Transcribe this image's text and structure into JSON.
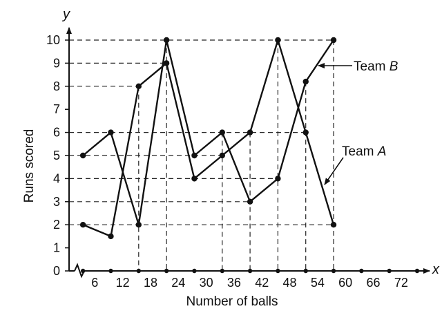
{
  "chart_data": {
    "type": "line",
    "xlabel": "Number of balls",
    "ylabel": "Runs scored",
    "x_axis_var": "x",
    "y_axis_var": "y",
    "x_ticks": [
      "6",
      "12",
      "18",
      "24",
      "30",
      "36",
      "42",
      "48",
      "54",
      "60",
      "66",
      "72"
    ],
    "y_ticks": [
      "0",
      "1",
      "2",
      "3",
      "4",
      "5",
      "6",
      "7",
      "8",
      "9",
      "10"
    ],
    "xlim": [
      0,
      75
    ],
    "ylim": [
      0,
      10.6
    ],
    "axis_break_on_x": true,
    "guide_lines": "dashed",
    "colors": {
      "line": "#111111",
      "guide": "#222222",
      "background": "#ffffff"
    },
    "series": [
      {
        "name": "Team A",
        "x": [
          3,
          9,
          15,
          21,
          27,
          33,
          39,
          45,
          51,
          57
        ],
        "y": [
          2,
          1.5,
          8,
          9,
          4,
          5,
          6,
          10,
          6,
          2
        ]
      },
      {
        "name": "Team B",
        "x": [
          3,
          9,
          15,
          21,
          27,
          33,
          39,
          45,
          51,
          57
        ],
        "y": [
          5,
          6,
          2,
          10,
          5,
          6,
          3,
          4,
          8.2,
          10
        ]
      }
    ],
    "annotations": [
      {
        "text_parts": [
          "Team ",
          "B"
        ],
        "series": "Team B"
      },
      {
        "text_parts": [
          "Team ",
          "A"
        ],
        "series": "Team A"
      }
    ]
  }
}
